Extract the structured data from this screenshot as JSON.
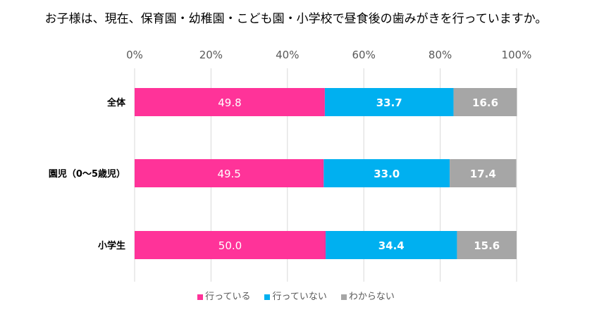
{
  "chart_data": {
    "type": "bar",
    "stacked": true,
    "orientation": "horizontal",
    "title": "お子様は、現在、保育園・幼稚園・こども園・小学校で昼食後の歯みがきを行っていますか。",
    "categories": [
      "全体",
      "園児（0～5歳児）",
      "小学生"
    ],
    "series": [
      {
        "name": "行っている",
        "values": [
          49.8,
          49.5,
          50.0
        ],
        "color": "#FF3399"
      },
      {
        "name": "行っていない",
        "values": [
          33.7,
          33.0,
          34.4
        ],
        "color": "#00B0F0"
      },
      {
        "name": "わからない",
        "values": [
          16.6,
          17.4,
          15.6
        ],
        "color": "#A6A6A6"
      }
    ],
    "xlim": [
      0,
      100
    ],
    "x_ticks": [
      "0%",
      "20%",
      "40%",
      "60%",
      "80%",
      "100%"
    ],
    "grid": true,
    "legend": "bottom",
    "xlabel": "",
    "ylabel": ""
  }
}
